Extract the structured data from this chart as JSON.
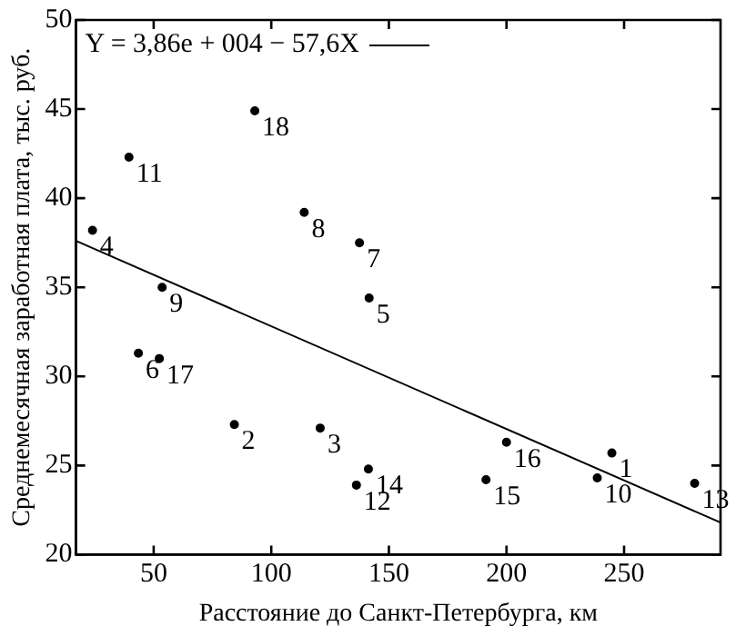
{
  "chart_data": {
    "type": "scatter",
    "xlabel": "Расстояние до Санкт-Петербурга, км",
    "ylabel": "Среднемесячная заработная плата, тыс. руб.",
    "xlim": [
      17,
      291
    ],
    "xticks": [
      50,
      100,
      150,
      200,
      250
    ],
    "ylim": [
      20,
      50
    ],
    "yticks": [
      20,
      25,
      30,
      35,
      40,
      45,
      50
    ],
    "grid": false,
    "legend": "top left",
    "marker": "circle",
    "series": [
      {
        "color": "#000000",
        "x": [
          244.8,
          84.3,
          120.8,
          24,
          141.6,
          43.5,
          137.5,
          114,
          53.6,
          238.6,
          39.5,
          136.2,
          280,
          141.3,
          191.3,
          200,
          52.4,
          93
        ],
        "values": [
          25.7,
          27.3,
          27.1,
          38.2,
          34.4,
          31.3,
          37.5,
          39.2,
          35.0,
          24.3,
          42.3,
          23.9,
          24.0,
          24.8,
          24.2,
          26.3,
          31.0,
          44.9
        ]
      },
      {
        "type": "line",
        "name": "Y = 3,86e + 004 − 57,6X",
        "color": "#000000",
        "x": [
          17,
          291
        ],
        "values": [
          37.6,
          21.8
        ],
        "marker": "none",
        "line_style": "solid"
      }
    ],
    "annotations": [
      {
        "text": "1",
        "x": 244.8,
        "y": 25.7
      },
      {
        "text": "2",
        "x": 84.3,
        "y": 27.3
      },
      {
        "text": "3",
        "x": 120.8,
        "y": 27.1
      },
      {
        "text": "4",
        "x": 24,
        "y": 38.2
      },
      {
        "text": "5",
        "x": 141.6,
        "y": 34.4
      },
      {
        "text": "6",
        "x": 43.5,
        "y": 31.3
      },
      {
        "text": "7",
        "x": 137.5,
        "y": 37.5
      },
      {
        "text": "8",
        "x": 114,
        "y": 39.2
      },
      {
        "text": "9",
        "x": 53.6,
        "y": 35.0
      },
      {
        "text": "10",
        "x": 238.6,
        "y": 24.3
      },
      {
        "text": "11",
        "x": 39.5,
        "y": 42.3
      },
      {
        "text": "12",
        "x": 136.2,
        "y": 23.9
      },
      {
        "text": "13",
        "x": 280,
        "y": 24.0
      },
      {
        "text": "14",
        "x": 141.3,
        "y": 24.8
      },
      {
        "text": "15",
        "x": 191.3,
        "y": 24.2
      },
      {
        "text": "16",
        "x": 200,
        "y": 26.3
      },
      {
        "text": "17",
        "x": 52.4,
        "y": 31.0
      },
      {
        "text": "18",
        "x": 93,
        "y": 44.9
      }
    ]
  }
}
